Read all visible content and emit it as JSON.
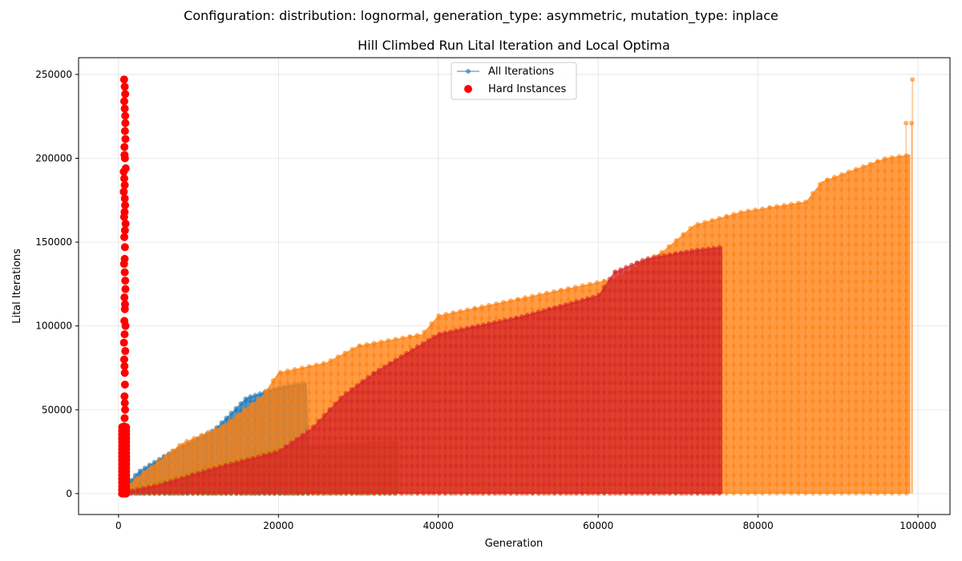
{
  "figure": {
    "suptitle": "Configuration: distribution: lognormal, generation_type: asymmetric, mutation_type: inplace"
  },
  "chart_data": {
    "type": "scatter",
    "title": "Hill Climbed Run Lital Iteration and Local Optima",
    "xlabel": "Generation",
    "ylabel": "Lital Iterations",
    "xlim": [
      -5000,
      104000
    ],
    "ylim": [
      -12500,
      260000
    ],
    "xticks": [
      0,
      20000,
      40000,
      60000,
      80000,
      100000
    ],
    "yticks": [
      0,
      50000,
      100000,
      150000,
      200000,
      250000
    ],
    "grid": true,
    "legend_position": "top-center",
    "legend": [
      {
        "label": "All Iterations",
        "marker": "line-dot",
        "color": "#1f77b4"
      },
      {
        "label": "Hard Instances",
        "marker": "dot",
        "color": "#ff0000"
      }
    ],
    "series": [
      {
        "color": "#1f77b4",
        "description": "run 1",
        "envelope": [
          [
            0,
            0
          ],
          [
            2500,
            13000
          ],
          [
            6000,
            23000
          ],
          [
            12000,
            38000
          ],
          [
            16000,
            57000
          ],
          [
            20000,
            63000
          ],
          [
            23500,
            66000
          ],
          [
            24000,
            0
          ]
        ]
      },
      {
        "color": "#2ca02c",
        "description": "run 2",
        "envelope": [
          [
            0,
            0
          ],
          [
            5000,
            7000
          ],
          [
            15000,
            20000
          ],
          [
            20000,
            27000
          ],
          [
            26000,
            29000
          ],
          [
            35000,
            31000
          ],
          [
            35000,
            0
          ]
        ]
      },
      {
        "color": "#ff7f0e",
        "description": "run 3",
        "envelope": [
          [
            0,
            0
          ],
          [
            3000,
            12000
          ],
          [
            8000,
            30000
          ],
          [
            13000,
            40000
          ],
          [
            18000,
            58000
          ],
          [
            20000,
            72000
          ],
          [
            26000,
            78000
          ],
          [
            30000,
            88000
          ],
          [
            38000,
            95000
          ],
          [
            40000,
            106000
          ],
          [
            50000,
            116000
          ],
          [
            56000,
            122000
          ],
          [
            62000,
            128000
          ],
          [
            68000,
            144000
          ],
          [
            72000,
            160000
          ],
          [
            78000,
            168000
          ],
          [
            86000,
            174000
          ],
          [
            88000,
            186000
          ],
          [
            92000,
            193000
          ],
          [
            96000,
            200000
          ],
          [
            99000,
            202000
          ],
          [
            99000,
            0
          ]
        ],
        "spikes": [
          [
            98500,
            221000
          ],
          [
            99200,
            221000
          ],
          [
            99300,
            247000
          ]
        ]
      },
      {
        "color": "#d62728",
        "description": "run 4",
        "envelope": [
          [
            0,
            0
          ],
          [
            5000,
            5000
          ],
          [
            12000,
            15000
          ],
          [
            20000,
            25000
          ],
          [
            24000,
            38000
          ],
          [
            28000,
            58000
          ],
          [
            32000,
            72000
          ],
          [
            40000,
            95000
          ],
          [
            50000,
            105000
          ],
          [
            60000,
            118000
          ],
          [
            62000,
            132000
          ],
          [
            66000,
            140000
          ],
          [
            72000,
            145000
          ],
          [
            75500,
            147000
          ],
          [
            75500,
            0
          ]
        ]
      }
    ],
    "hard_instances": {
      "color": "#ff0000",
      "x": [
        700,
        850,
        750,
        800,
        900,
        650,
        780,
        820,
        760,
        700,
        880,
        720,
        800,
        770,
        690,
        860,
        740,
        810,
        790,
        730,
        870,
        760,
        680,
        840,
        710,
        780,
        800,
        750,
        820,
        700
      ],
      "y": [
        247000,
        221000,
        202000,
        200000,
        194000,
        192000,
        176000,
        172000,
        168000,
        165000,
        161000,
        153000,
        147000,
        140000,
        137000,
        122000,
        117000,
        113000,
        110000,
        103000,
        100000,
        95000,
        90000,
        85000,
        80000,
        72000,
        65000,
        58000,
        50000,
        40000
      ]
    }
  }
}
